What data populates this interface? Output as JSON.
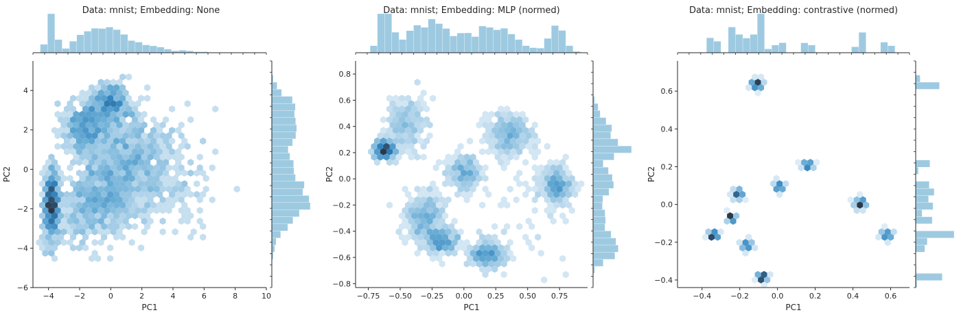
{
  "chart_data": [
    {
      "type": "hexbin-jointplot",
      "title": "Data: mnist; Embedding: None",
      "xlabel": "PC1",
      "ylabel": "PC2",
      "xlim": [
        -5,
        10
      ],
      "ylim": [
        -6,
        5.5
      ],
      "xticks": [
        -4,
        -2,
        0,
        2,
        4,
        6,
        8,
        10
      ],
      "yticks": [
        -6,
        -4,
        -2,
        0,
        2,
        4
      ],
      "color": "#3182bd",
      "marginal_color": "#9ecae1",
      "grid": false,
      "clusters": [
        {
          "x": -3.8,
          "y": -1.8,
          "sx": 0.25,
          "sy": 0.9,
          "w": 1.0
        },
        {
          "x": -1.5,
          "y": 2.2,
          "sx": 0.7,
          "sy": 0.7,
          "w": 0.8
        },
        {
          "x": 0.0,
          "y": 3.4,
          "sx": 0.6,
          "sy": 0.5,
          "w": 0.6
        },
        {
          "x": 0.0,
          "y": -0.8,
          "sx": 1.3,
          "sy": 1.2,
          "w": 1.0
        },
        {
          "x": 1.5,
          "y": 1.0,
          "sx": 1.2,
          "sy": 1.1,
          "w": 0.7
        },
        {
          "x": -1.5,
          "y": -2.0,
          "sx": 1.0,
          "sy": 1.0,
          "w": 0.5
        },
        {
          "x": 3.5,
          "y": -0.5,
          "sx": 1.6,
          "sy": 1.5,
          "w": 0.35
        }
      ]
    },
    {
      "type": "hexbin-jointplot",
      "title": "Data: mnist; Embedding: MLP (normed)",
      "xlabel": "PC1",
      "ylabel": "PC2",
      "xlim": [
        -0.85,
        0.97
      ],
      "ylim": [
        -0.83,
        0.9
      ],
      "xticks": [
        -0.75,
        -0.5,
        -0.25,
        0.0,
        0.25,
        0.5,
        0.75
      ],
      "xtick_labels": [
        "−0.75",
        "−0.50",
        "−0.25",
        "0.00",
        "0.25",
        "0.50",
        "0.75"
      ],
      "yticks": [
        -0.8,
        -0.6,
        -0.4,
        -0.2,
        0.0,
        0.2,
        0.4,
        0.6,
        0.8
      ],
      "ytick_labels": [
        "−0.8",
        "−0.6",
        "−0.4",
        "−0.2",
        "0.0",
        "0.2",
        "0.4",
        "0.6",
        "0.8"
      ],
      "color": "#3182bd",
      "marginal_color": "#9ecae1",
      "grid": false,
      "clusters": [
        {
          "x": -0.62,
          "y": 0.22,
          "sx": 0.04,
          "sy": 0.04,
          "w": 1.0
        },
        {
          "x": -0.45,
          "y": 0.42,
          "sx": 0.08,
          "sy": 0.1,
          "w": 0.6
        },
        {
          "x": 0.35,
          "y": 0.33,
          "sx": 0.09,
          "sy": 0.08,
          "w": 0.8
        },
        {
          "x": 0.73,
          "y": -0.05,
          "sx": 0.06,
          "sy": 0.07,
          "w": 0.8
        },
        {
          "x": 0.0,
          "y": 0.05,
          "sx": 0.07,
          "sy": 0.07,
          "w": 0.6
        },
        {
          "x": -0.3,
          "y": -0.3,
          "sx": 0.08,
          "sy": 0.1,
          "w": 0.9
        },
        {
          "x": -0.18,
          "y": -0.48,
          "sx": 0.07,
          "sy": 0.05,
          "w": 0.7
        },
        {
          "x": 0.18,
          "y": -0.58,
          "sx": 0.07,
          "sy": 0.05,
          "w": 0.8
        },
        {
          "x": 0.45,
          "y": -0.3,
          "sx": 0.2,
          "sy": 0.3,
          "w": 0.15
        }
      ]
    },
    {
      "type": "hexbin-jointplot",
      "title": "Data: mnist; Embedding: contrastive (normed)",
      "xlabel": "PC1",
      "ylabel": "PC2",
      "xlim": [
        -0.53,
        0.7
      ],
      "ylim": [
        -0.44,
        0.76
      ],
      "xticks": [
        -0.4,
        -0.2,
        0.0,
        0.2,
        0.4,
        0.6
      ],
      "xtick_labels": [
        "−0.4",
        "−0.2",
        "0.0",
        "0.2",
        "0.4",
        "0.6"
      ],
      "yticks": [
        -0.4,
        -0.2,
        0.0,
        0.2,
        0.4,
        0.6
      ],
      "ytick_labels": [
        "−0.4",
        "−0.2",
        "0.0",
        "0.2",
        "0.4",
        "0.6"
      ],
      "color": "#3182bd",
      "marginal_color": "#9ecae1",
      "grid": false,
      "clusters": [
        {
          "x": -0.11,
          "y": 0.635,
          "sx": 0.012,
          "sy": 0.012,
          "w": 1.0
        },
        {
          "x": 0.16,
          "y": 0.21,
          "sx": 0.012,
          "sy": 0.012,
          "w": 0.6
        },
        {
          "x": 0.01,
          "y": 0.095,
          "sx": 0.012,
          "sy": 0.012,
          "w": 0.6
        },
        {
          "x": -0.21,
          "y": 0.055,
          "sx": 0.012,
          "sy": 0.012,
          "w": 0.7
        },
        {
          "x": 0.44,
          "y": 0.005,
          "sx": 0.012,
          "sy": 0.012,
          "w": 0.9
        },
        {
          "x": -0.245,
          "y": -0.07,
          "sx": 0.008,
          "sy": 0.008,
          "w": 0.8
        },
        {
          "x": 0.58,
          "y": -0.16,
          "sx": 0.012,
          "sy": 0.012,
          "w": 0.6
        },
        {
          "x": -0.34,
          "y": -0.165,
          "sx": 0.01,
          "sy": 0.01,
          "w": 0.9
        },
        {
          "x": -0.16,
          "y": -0.215,
          "sx": 0.012,
          "sy": 0.012,
          "w": 0.6
        },
        {
          "x": -0.08,
          "y": -0.385,
          "sx": 0.01,
          "sy": 0.01,
          "w": 1.0
        }
      ]
    }
  ]
}
